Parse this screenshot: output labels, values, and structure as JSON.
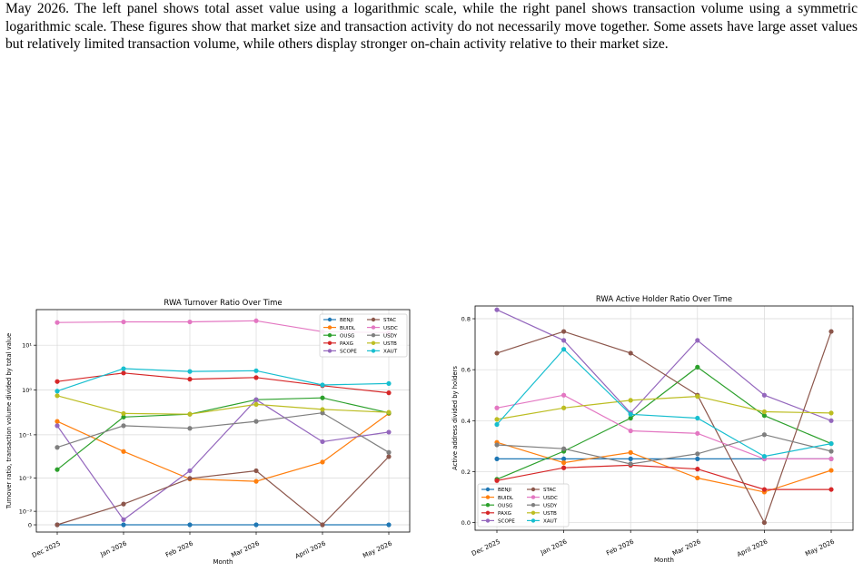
{
  "paragraph": "May 2026. The left panel shows total asset value using a logarithmic scale, while the right panel shows transaction volume using a symmetric logarithmic scale.  These figures show that market size and transaction activity do not necessarily move together. Some assets have large asset values but relatively limited transaction volume, while others display stronger on-chain activity relative to their market size.",
  "chart_data": [
    {
      "type": "line",
      "title": "RWA Turnover Ratio Over Time",
      "xlabel": "Month",
      "ylabel": "Turnover ratio, transaction volume divided by total value",
      "yscale": "symlog",
      "ytick_labels": [
        "0",
        "10⁻³",
        "10⁻²",
        "10⁻¹",
        "10⁰",
        "10¹"
      ],
      "ytick_values": [
        0,
        0.001,
        0.01,
        0.1,
        1,
        10
      ],
      "grid": true,
      "legend_position": "top-right",
      "categories": [
        "Dec 2025",
        "Jan 2026",
        "Feb 2026",
        "Mar 2026",
        "April 2026",
        "May 2026"
      ],
      "series": [
        {
          "name": "BENJI",
          "color": "#1f77b4",
          "values": [
            0,
            0,
            0,
            0,
            0,
            0
          ]
        },
        {
          "name": "BUIDL",
          "color": "#ff7f0e",
          "values": [
            0.2,
            0.042,
            0.0095,
            0.0083,
            0.024,
            0.3
          ]
        },
        {
          "name": "OUSG",
          "color": "#2ca02c",
          "values": [
            0.016,
            0.25,
            0.29,
            0.61,
            0.67,
            0.31
          ]
        },
        {
          "name": "PAXG",
          "color": "#d62728",
          "values": [
            1.55,
            2.4,
            1.75,
            1.9,
            1.25,
            0.87
          ]
        },
        {
          "name": "SCOPE",
          "color": "#9467bd",
          "values": [
            0.16,
            0.0003,
            0.015,
            0.61,
            0.07,
            0.115
          ]
        },
        {
          "name": "STAC",
          "color": "#8c564b",
          "values": [
            0,
            0.0019,
            0.0098,
            0.015,
            0,
            0.032
          ]
        },
        {
          "name": "USDC",
          "color": "#e377c2",
          "values": [
            32,
            33,
            33,
            35,
            20,
            19
          ]
        },
        {
          "name": "USDY",
          "color": "#7f7f7f",
          "values": [
            0.052,
            0.16,
            0.14,
            0.2,
            0.31,
            0.04
          ]
        },
        {
          "name": "USTB",
          "color": "#bcbd22",
          "values": [
            0.75,
            0.3,
            0.29,
            0.48,
            0.37,
            0.32
          ]
        },
        {
          "name": "XAUT",
          "color": "#17becf",
          "values": [
            0.95,
            3.0,
            2.6,
            2.7,
            1.3,
            1.4
          ]
        }
      ]
    },
    {
      "type": "line",
      "title": "RWA Active Holder Ratio Over Time",
      "xlabel": "Month",
      "ylabel": "Active address divided by holders",
      "ylim": [
        -0.03,
        0.85
      ],
      "yticks": [
        0.0,
        0.2,
        0.4,
        0.6,
        0.8
      ],
      "ytick_labels": [
        "0.0",
        "0.2",
        "0.4",
        "0.6",
        "0.8"
      ],
      "grid": true,
      "legend_position": "bottom-left",
      "categories": [
        "Dec 2025",
        "Jan 2026",
        "Feb 2026",
        "Mar 2026",
        "April 2026",
        "May 2026"
      ],
      "series": [
        {
          "name": "BENJI",
          "color": "#1f77b4",
          "values": [
            0.25,
            0.25,
            0.25,
            0.25,
            0.25,
            0.25
          ]
        },
        {
          "name": "BUIDL",
          "color": "#ff7f0e",
          "values": [
            0.315,
            0.235,
            0.275,
            0.175,
            0.12,
            0.205
          ]
        },
        {
          "name": "OUSG",
          "color": "#2ca02c",
          "values": [
            0.17,
            0.28,
            0.41,
            0.61,
            0.42,
            0.31
          ]
        },
        {
          "name": "PAXG",
          "color": "#d62728",
          "values": [
            0.165,
            0.215,
            0.225,
            0.21,
            0.13,
            0.13
          ]
        },
        {
          "name": "SCOPE",
          "color": "#9467bd",
          "values": [
            0.835,
            0.715,
            0.43,
            0.715,
            0.5,
            0.4
          ]
        },
        {
          "name": "STAC",
          "color": "#8c564b",
          "values": [
            0.665,
            0.75,
            0.665,
            0.5,
            0.0,
            0.75
          ]
        },
        {
          "name": "USDC",
          "color": "#e377c2",
          "values": [
            0.45,
            0.5,
            0.36,
            0.35,
            0.25,
            0.25
          ]
        },
        {
          "name": "USDY",
          "color": "#7f7f7f",
          "values": [
            0.305,
            0.29,
            0.23,
            0.27,
            0.345,
            0.28
          ]
        },
        {
          "name": "USTB",
          "color": "#bcbd22",
          "values": [
            0.405,
            0.45,
            0.48,
            0.495,
            0.435,
            0.43
          ]
        },
        {
          "name": "XAUT",
          "color": "#17becf",
          "values": [
            0.385,
            0.68,
            0.425,
            0.41,
            0.26,
            0.31
          ]
        }
      ]
    }
  ]
}
